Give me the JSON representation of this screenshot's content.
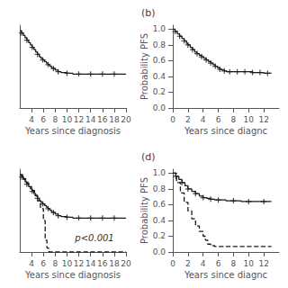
{
  "chart_data": [
    {
      "type": "step",
      "xlabel": "Years since diagnosis",
      "xlim": [
        2,
        20
      ],
      "ylim": [
        0,
        1.05
      ],
      "xticks": [
        4,
        6,
        8,
        10,
        12,
        14,
        16,
        18,
        20
      ],
      "tick_labels": "x",
      "grid": false,
      "series": [
        {
          "type": "step",
          "line_style": "solid",
          "color": "#1a1a1a",
          "x": [
            2,
            2.3,
            2.6,
            2.9,
            3.2,
            3.5,
            3.8,
            4.1,
            4.4,
            4.7,
            5.0,
            5.3,
            5.6,
            5.9,
            6.2,
            6.5,
            6.8,
            7.1,
            7.4,
            7.7,
            8.0,
            8.5,
            9.0,
            10.0,
            11.0,
            12.0,
            13.0,
            14.0,
            15.0,
            16.0,
            17.0,
            18.0,
            19.0,
            20.0
          ],
          "values": [
            0.98,
            0.95,
            0.92,
            0.89,
            0.86,
            0.83,
            0.8,
            0.77,
            0.74,
            0.71,
            0.68,
            0.65,
            0.63,
            0.61,
            0.59,
            0.57,
            0.55,
            0.53,
            0.51,
            0.5,
            0.48,
            0.46,
            0.45,
            0.44,
            0.43,
            0.43,
            0.43,
            0.43,
            0.43,
            0.43,
            0.43,
            0.43,
            0.43,
            0.43
          ]
        },
        {
          "type": "scatter",
          "marker": "plus",
          "color": "#1a1a1a",
          "x": [
            2.3,
            3.2,
            4.1,
            5.0,
            5.9,
            6.8,
            7.7,
            8.5,
            10.0,
            12.0,
            14.0,
            16.0,
            18.0
          ],
          "values": [
            0.95,
            0.86,
            0.77,
            0.68,
            0.61,
            0.55,
            0.5,
            0.46,
            0.44,
            0.43,
            0.43,
            0.43,
            0.43
          ]
        }
      ]
    },
    {
      "type": "step",
      "title": "(b)",
      "xlabel": "Years since diagnc",
      "ylabel": "Probability PFS",
      "xlim": [
        0,
        14
      ],
      "ylim": [
        0.0,
        1.05
      ],
      "xticks": [
        0,
        2,
        4,
        6,
        8,
        10,
        12
      ],
      "yticks": [
        {
          "value": 0.0,
          "label": "0.0"
        },
        0.2,
        0.4,
        0.6,
        0.8,
        {
          "value": 1.0,
          "label": "1.0"
        }
      ],
      "grid": false,
      "series": [
        {
          "type": "step",
          "line_style": "solid",
          "color": "#1a1a1a",
          "x": [
            0,
            0.3,
            0.6,
            0.9,
            1.2,
            1.5,
            1.8,
            2.0,
            2.3,
            2.6,
            2.9,
            3.2,
            3.5,
            3.8,
            4.1,
            4.4,
            4.7,
            5.0,
            5.3,
            5.6,
            5.9,
            6.2,
            6.5,
            6.8,
            7.1,
            7.5,
            8.0,
            8.5,
            9.0,
            9.5,
            10.0,
            10.5,
            11.0,
            11.5,
            12.0,
            12.5,
            13.0
          ],
          "values": [
            1.0,
            0.97,
            0.94,
            0.91,
            0.88,
            0.85,
            0.82,
            0.8,
            0.77,
            0.74,
            0.71,
            0.69,
            0.67,
            0.65,
            0.63,
            0.61,
            0.59,
            0.57,
            0.55,
            0.53,
            0.51,
            0.49,
            0.48,
            0.47,
            0.46,
            0.46,
            0.46,
            0.46,
            0.46,
            0.46,
            0.46,
            0.45,
            0.45,
            0.45,
            0.44,
            0.44,
            0.44
          ]
        },
        {
          "type": "scatter",
          "marker": "plus",
          "color": "#1a1a1a",
          "x": [
            0.3,
            0.9,
            1.5,
            2.0,
            2.6,
            3.2,
            3.8,
            4.4,
            5.0,
            5.6,
            6.2,
            6.8,
            7.5,
            8.5,
            9.5,
            10.5,
            11.5,
            12.5
          ],
          "values": [
            0.97,
            0.91,
            0.85,
            0.8,
            0.74,
            0.69,
            0.65,
            0.61,
            0.57,
            0.53,
            0.49,
            0.47,
            0.46,
            0.46,
            0.46,
            0.45,
            0.45,
            0.44
          ]
        }
      ]
    },
    {
      "type": "step",
      "xlabel": "Years since diagnosis",
      "annotation": "p<0.001",
      "xlim": [
        2,
        20
      ],
      "ylim": [
        0,
        1.05
      ],
      "xticks": [
        4,
        6,
        8,
        10,
        12,
        14,
        16,
        18,
        20
      ],
      "tick_labels": "x",
      "grid": false,
      "series": [
        {
          "type": "step",
          "line_style": "solid",
          "color": "#1a1a1a",
          "x": [
            2,
            2.3,
            2.6,
            2.9,
            3.2,
            3.5,
            3.8,
            4.1,
            4.4,
            4.7,
            5.0,
            5.3,
            5.6,
            5.9,
            6.2,
            6.5,
            6.8,
            7.1,
            7.4,
            7.7,
            8.0,
            8.5,
            9.0,
            10.0,
            11.0,
            12.0,
            13.0,
            14.0,
            15.0,
            16.0,
            17.0,
            18.0,
            19.0,
            20.0
          ],
          "values": [
            0.98,
            0.95,
            0.92,
            0.89,
            0.86,
            0.83,
            0.8,
            0.77,
            0.74,
            0.71,
            0.68,
            0.65,
            0.63,
            0.61,
            0.59,
            0.57,
            0.55,
            0.53,
            0.51,
            0.5,
            0.48,
            0.46,
            0.45,
            0.44,
            0.43,
            0.43,
            0.43,
            0.43,
            0.43,
            0.43,
            0.43,
            0.43,
            0.43,
            0.43
          ]
        },
        {
          "type": "scatter",
          "marker": "plus",
          "color": "#1a1a1a",
          "x": [
            2.3,
            3.2,
            4.1,
            5.0,
            5.9,
            6.8,
            7.7,
            8.5,
            10.0,
            12.0,
            14.0,
            16.0,
            18.0
          ],
          "values": [
            0.95,
            0.86,
            0.77,
            0.68,
            0.61,
            0.55,
            0.5,
            0.46,
            0.44,
            0.43,
            0.43,
            0.43,
            0.43
          ]
        },
        {
          "type": "step",
          "line_style": "dashed",
          "color": "#1a1a1a",
          "x": [
            2.0,
            2.5,
            3.0,
            3.5,
            4.0,
            4.5,
            5.0,
            5.5,
            6.0,
            6.3,
            6.6,
            6.9,
            7.0,
            20.0
          ],
          "values": [
            0.98,
            0.93,
            0.88,
            0.83,
            0.78,
            0.72,
            0.65,
            0.55,
            0.4,
            0.15,
            0.05,
            0.01,
            0.0,
            0.0
          ]
        }
      ]
    },
    {
      "type": "step",
      "title": "(d)",
      "xlabel": "Years since diagnc",
      "ylabel": "Probability PFS",
      "xlim": [
        0,
        14
      ],
      "ylim": [
        0.0,
        1.05
      ],
      "xticks": [
        0,
        2,
        4,
        6,
        8,
        10,
        12
      ],
      "yticks": [
        {
          "value": 0.0,
          "label": "0.0"
        },
        0.2,
        0.4,
        0.6,
        0.8,
        {
          "value": 1.0,
          "label": "1.0"
        }
      ],
      "grid": false,
      "series": [
        {
          "type": "step",
          "line_style": "solid",
          "color": "#1a1a1a",
          "x": [
            0,
            0.4,
            0.8,
            1.2,
            1.6,
            2.0,
            2.5,
            3.0,
            3.5,
            4.0,
            4.5,
            5.0,
            5.5,
            6.0,
            7.0,
            8.0,
            9.0,
            10.0,
            11.0,
            12.0,
            13.0
          ],
          "values": [
            1.0,
            0.96,
            0.92,
            0.88,
            0.84,
            0.8,
            0.77,
            0.74,
            0.71,
            0.69,
            0.68,
            0.67,
            0.66,
            0.66,
            0.65,
            0.65,
            0.64,
            0.64,
            0.64,
            0.64,
            0.64
          ]
        },
        {
          "type": "scatter",
          "marker": "plus",
          "color": "#1a1a1a",
          "x": [
            0.4,
            1.2,
            2.0,
            3.0,
            4.0,
            5.0,
            6.0,
            8.0,
            10.0,
            12.0
          ],
          "values": [
            0.96,
            0.88,
            0.8,
            0.74,
            0.69,
            0.67,
            0.66,
            0.65,
            0.64,
            0.64
          ]
        },
        {
          "type": "step",
          "line_style": "dashed",
          "color": "#1a1a1a",
          "x": [
            0,
            0.5,
            1.0,
            1.5,
            2.0,
            2.5,
            3.0,
            3.5,
            4.0,
            4.3,
            4.6,
            5.0,
            5.5,
            13.0
          ],
          "values": [
            1.0,
            0.88,
            0.75,
            0.63,
            0.52,
            0.42,
            0.33,
            0.26,
            0.2,
            0.15,
            0.1,
            0.08,
            0.07,
            0.07
          ]
        }
      ]
    }
  ]
}
